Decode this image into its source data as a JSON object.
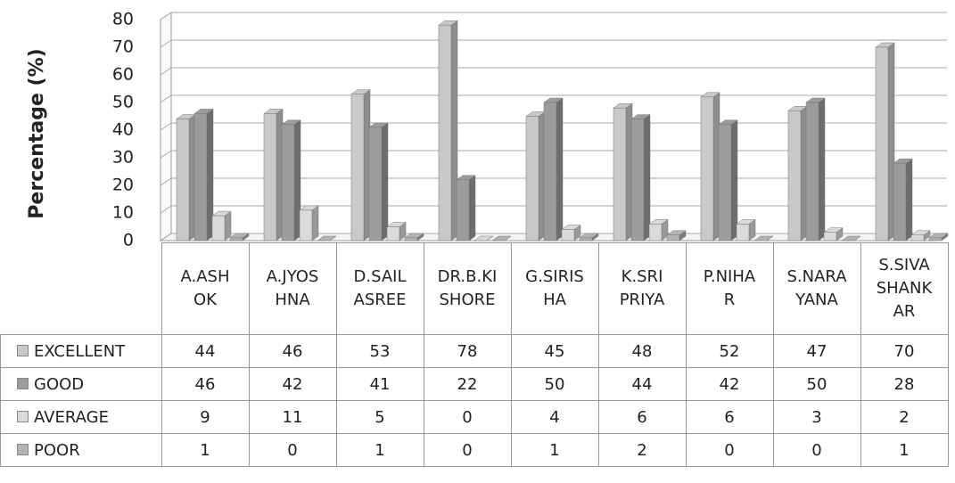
{
  "chart_data": {
    "type": "bar",
    "y_label": "Percentage (%)",
    "categories": [
      "A.ASH\nOK",
      "A.JYOS\nHNA",
      "D.SAIL\nASREE",
      "DR.B.KI\nSHORE",
      "G.SIRIS\nHA",
      "K.SRI\nPRIYA",
      "P.NIHA\nR",
      "S.NARA\nYANA",
      "S.SIVA\nSHANK\nAR"
    ],
    "series": [
      {
        "name": "EXCELLENT",
        "color": "#c9c9c9",
        "values": [
          44,
          46,
          53,
          78,
          45,
          48,
          52,
          47,
          70
        ]
      },
      {
        "name": "GOOD",
        "color": "#9c9c9c",
        "values": [
          46,
          42,
          41,
          22,
          50,
          44,
          42,
          50,
          28
        ]
      },
      {
        "name": "AVERAGE",
        "color": "#dadada",
        "values": [
          9,
          11,
          5,
          0,
          4,
          6,
          6,
          3,
          2
        ]
      },
      {
        "name": "POOR",
        "color": "#b3b3b3",
        "values": [
          1,
          0,
          1,
          0,
          1,
          2,
          0,
          0,
          1
        ]
      }
    ],
    "ylim": [
      0,
      80
    ],
    "yticks": [
      0,
      10,
      20,
      30,
      40,
      50,
      60,
      70,
      80
    ],
    "grid": true
  }
}
